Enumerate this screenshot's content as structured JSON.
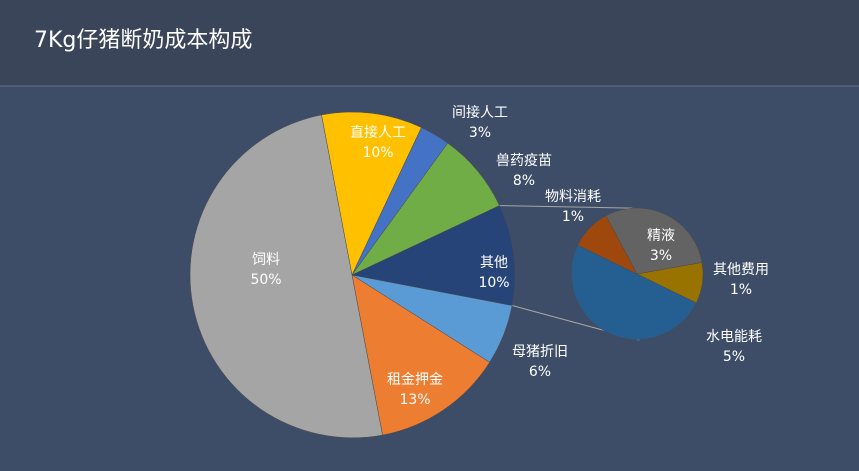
{
  "header": {
    "title": "7Kg仔猪断奶成本构成"
  },
  "chart_data": {
    "type": "pie",
    "title": "7Kg仔猪断奶成本构成",
    "main_slices": [
      {
        "label": "直接人工",
        "percent_label": "10%",
        "value": 10,
        "color": "#ffc000"
      },
      {
        "label": "间接人工",
        "percent_label": "3%",
        "value": 3,
        "color": "#4472c4"
      },
      {
        "label": "兽药疫苗",
        "percent_label": "8%",
        "value": 8,
        "color": "#70ad47"
      },
      {
        "label": "其他",
        "percent_label": "10%",
        "value": 10,
        "color": "#264478"
      },
      {
        "label": "母猪折旧",
        "percent_label": "6%",
        "value": 6,
        "color": "#5b9bd5"
      },
      {
        "label": "租金押金",
        "percent_label": "13%",
        "value": 13,
        "color": "#ed7d31"
      },
      {
        "label": "饲料",
        "percent_label": "50%",
        "value": 50,
        "color": "#a5a5a5"
      }
    ],
    "sub_slices": [
      {
        "label": "精液",
        "percent_label": "3%",
        "value": 3,
        "color": "#636363"
      },
      {
        "label": "其他费用",
        "percent_label": "1%",
        "value": 1,
        "color": "#997300"
      },
      {
        "label": "水电能耗",
        "percent_label": "5%",
        "value": 5,
        "color": "#255e91"
      },
      {
        "label": "物料消耗",
        "percent_label": "1%",
        "value": 1,
        "color": "#9e480e"
      }
    ]
  }
}
